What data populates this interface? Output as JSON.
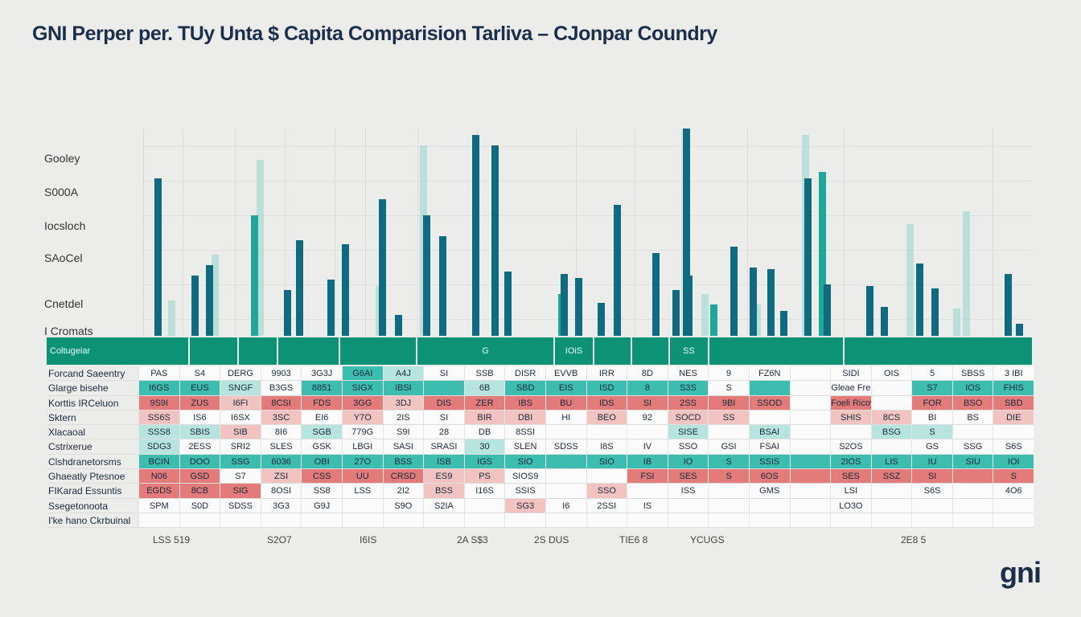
{
  "title": "GNI Perper  per. TUy Unta $ Capita Comparision Tarliva – CJonpar Coundry",
  "logo": "gni",
  "colors": {
    "dark": "#0f6b80",
    "teal": "#1fa89a",
    "light": "#a6dbd2",
    "header": "#0e9276",
    "red": "#e27b79"
  },
  "y_labels": [
    "Gooley",
    "S000A",
    "Iocsloch",
    "SAoCel",
    "Cnetdel",
    "I Cromats"
  ],
  "chart_data": {
    "type": "bar",
    "title": "GNI Perper  per. TUy Unta $ Capita Comparision Tarliva – CJonpar Coundry",
    "grid": true,
    "ylim": [
      0,
      100
    ],
    "series": [
      {
        "color": "dark",
        "values": [
          [
            195,
            76
          ],
          [
            241,
            29
          ],
          [
            259,
            34
          ],
          [
            371,
            46
          ],
          [
            356,
            22
          ],
          [
            410,
            27
          ],
          [
            428,
            44
          ],
          [
            474,
            66
          ],
          [
            494,
            10
          ],
          [
            529,
            58
          ],
          [
            549,
            48
          ],
          [
            590,
            97
          ],
          [
            614,
            92
          ],
          [
            630,
            31
          ],
          [
            700,
            30
          ],
          [
            718,
            28
          ],
          [
            746,
            16
          ],
          [
            766,
            63
          ],
          [
            814,
            40
          ],
          [
            839,
            22
          ],
          [
            852,
            100
          ],
          [
            855,
            29
          ],
          [
            911,
            43
          ],
          [
            935,
            33
          ],
          [
            957,
            32
          ],
          [
            973,
            12
          ],
          [
            1003,
            76
          ],
          [
            1027,
            25
          ],
          [
            1080,
            24
          ],
          [
            1098,
            14
          ],
          [
            1142,
            35
          ],
          [
            1161,
            23
          ],
          [
            1252,
            30
          ],
          [
            1266,
            6
          ]
        ]
      },
      {
        "color": "teal",
        "values": [
          [
            315,
            58
          ],
          [
            1021,
            79
          ],
          [
            886,
            15
          ],
          [
            697,
            20
          ],
          [
            630,
            12
          ]
        ]
      },
      {
        "color": "light",
        "values": [
          [
            322,
            85
          ],
          [
            212,
            17
          ],
          [
            266,
            39
          ],
          [
            525,
            92
          ],
          [
            1188,
            13
          ],
          [
            1130,
            54
          ],
          [
            1200,
            60
          ],
          [
            1000,
            97
          ],
          [
            470,
            24
          ],
          [
            875,
            20
          ],
          [
            940,
            15
          ]
        ]
      }
    ]
  },
  "table": {
    "header": [
      "Coltugeiar",
      "",
      "",
      "",
      "",
      "G",
      "IOiS",
      "",
      "",
      "SS",
      "",
      ""
    ],
    "rows": [
      {
        "label": "Forcand Saeentry",
        "cells": [
          [
            "PAS",
            "w"
          ],
          [
            "S4",
            "w"
          ],
          [
            "DERG",
            "w"
          ],
          [
            "9903",
            "w"
          ],
          [
            "3G3J",
            "w"
          ],
          [
            "G6AI",
            "t"
          ],
          [
            "A4J",
            "lt"
          ],
          [
            "SI",
            "w"
          ],
          [
            "SSB",
            "w"
          ],
          [
            "DISR",
            "w"
          ],
          [
            "EVVB",
            "w"
          ],
          [
            "IRR",
            "w"
          ],
          [
            "8D",
            "w"
          ],
          [
            "NES",
            "w"
          ],
          [
            "9",
            "w"
          ],
          [
            "FZ6N",
            "w"
          ],
          [
            "",
            "w"
          ],
          [
            "SIDI",
            "w"
          ],
          [
            "OIS",
            "w"
          ],
          [
            "5",
            "w"
          ],
          [
            "SBSS",
            "w"
          ],
          [
            "3 IBI",
            "w"
          ]
        ]
      },
      {
        "label": "Glarge bisehe",
        "cells": [
          [
            "I6GS",
            "t"
          ],
          [
            "EUS",
            "t"
          ],
          [
            "SNGF",
            "lt"
          ],
          [
            "B3GS",
            "w"
          ],
          [
            "8851",
            "t"
          ],
          [
            "SIGX",
            "t"
          ],
          [
            "IBSI",
            "t"
          ],
          [
            "",
            "t"
          ],
          [
            "6B",
            "lt"
          ],
          [
            "SBD",
            "t"
          ],
          [
            "EIS",
            "t"
          ],
          [
            "ISD",
            "t"
          ],
          [
            "8",
            "t"
          ],
          [
            "S3S",
            "t"
          ],
          [
            "S",
            "w"
          ],
          [
            "",
            "t"
          ],
          [
            "",
            "w"
          ],
          [
            "Gleae Fre",
            "w"
          ],
          [
            "",
            "w"
          ],
          [
            "S7",
            "t"
          ],
          [
            "IOS",
            "t"
          ],
          [
            "FHIS",
            "t"
          ]
        ]
      },
      {
        "label": "Korttis IRCeluon",
        "cells": [
          [
            "9S9I",
            "r"
          ],
          [
            "ZUS",
            "r"
          ],
          [
            "I6FI",
            "lr"
          ],
          [
            "8CSI",
            "r"
          ],
          [
            "FDS",
            "r"
          ],
          [
            "3GG",
            "r"
          ],
          [
            "3DJ",
            "lr"
          ],
          [
            "DIS",
            "r"
          ],
          [
            "ZER",
            "r"
          ],
          [
            "IBS",
            "r"
          ],
          [
            "BU",
            "r"
          ],
          [
            "IDS",
            "r"
          ],
          [
            "SI",
            "r"
          ],
          [
            "2SS",
            "r"
          ],
          [
            "9BI",
            "r"
          ],
          [
            "SSOD",
            "r"
          ],
          [
            "",
            "w"
          ],
          [
            "Foeli Ricoy",
            "r"
          ],
          [
            "",
            "w"
          ],
          [
            "FOR",
            "r"
          ],
          [
            "BSO",
            "r"
          ],
          [
            "SBD",
            "r"
          ]
        ]
      },
      {
        "label": "Sktern",
        "cells": [
          [
            "SS6S",
            "lr"
          ],
          [
            "IS6",
            "w"
          ],
          [
            "I6SX",
            "w"
          ],
          [
            "3SC",
            "lr"
          ],
          [
            "EI6",
            "w"
          ],
          [
            "Y7O",
            "lr"
          ],
          [
            "2IS",
            "w"
          ],
          [
            "SI",
            "w"
          ],
          [
            "BIR",
            "lr"
          ],
          [
            "DBI",
            "lr"
          ],
          [
            "HI",
            "w"
          ],
          [
            "BEO",
            "lr"
          ],
          [
            "92",
            "w"
          ],
          [
            "SOCD",
            "lr"
          ],
          [
            "SS",
            "lr"
          ],
          [
            "",
            "w"
          ],
          [
            "",
            "w"
          ],
          [
            "SHIS",
            "lr"
          ],
          [
            "8CS",
            "lr"
          ],
          [
            "BI",
            "w"
          ],
          [
            "BS",
            "w"
          ],
          [
            "DIE",
            "lr"
          ]
        ]
      },
      {
        "label": "Xlacaoal",
        "cells": [
          [
            "SSS8",
            "lt"
          ],
          [
            "SBIS",
            "lt"
          ],
          [
            "SIB",
            "lr"
          ],
          [
            "8I6",
            "w"
          ],
          [
            "SGB",
            "lt"
          ],
          [
            "779G",
            "w"
          ],
          [
            "S9I",
            "w"
          ],
          [
            "28",
            "w"
          ],
          [
            "DB",
            "w"
          ],
          [
            "8SSI",
            "w"
          ],
          [
            "",
            "w"
          ],
          [
            "",
            "w"
          ],
          [
            "",
            "w"
          ],
          [
            "SISE",
            "lt"
          ],
          [
            "",
            "w"
          ],
          [
            "BSAI",
            "lt"
          ],
          [
            "",
            "w"
          ],
          [
            "",
            "w"
          ],
          [
            "BSG",
            "lt"
          ],
          [
            "S",
            "lt"
          ],
          [
            "",
            "w"
          ],
          [
            "",
            "w"
          ]
        ]
      },
      {
        "label": "Cstrixerue",
        "cells": [
          [
            "SDG3",
            "lt"
          ],
          [
            "2ESS",
            "w"
          ],
          [
            "SRI2",
            "w"
          ],
          [
            "SLES",
            "w"
          ],
          [
            "GSK",
            "w"
          ],
          [
            "LBGI",
            "w"
          ],
          [
            "SASI",
            "w"
          ],
          [
            "SRASI",
            "w"
          ],
          [
            "30",
            "lt"
          ],
          [
            "SLEN",
            "w"
          ],
          [
            "SDSS",
            "w"
          ],
          [
            "I8S",
            "w"
          ],
          [
            "IV",
            "w"
          ],
          [
            "SSO",
            "w"
          ],
          [
            "GSI",
            "w"
          ],
          [
            "FSAI",
            "w"
          ],
          [
            "",
            "w"
          ],
          [
            "S2OS",
            "w"
          ],
          [
            "",
            "w"
          ],
          [
            "GS",
            "w"
          ],
          [
            "SSG",
            "w"
          ],
          [
            "S6S",
            "w"
          ]
        ]
      },
      {
        "label": "Clshdranetorsms",
        "cells": [
          [
            "BCIN",
            "t"
          ],
          [
            "DOO",
            "t"
          ],
          [
            "SSG",
            "t"
          ],
          [
            "6036",
            "t"
          ],
          [
            "OBI",
            "t"
          ],
          [
            "27O",
            "t"
          ],
          [
            "BSS",
            "t"
          ],
          [
            "ISB",
            "t"
          ],
          [
            "IGS",
            "t"
          ],
          [
            "SIO",
            "t"
          ],
          [
            "",
            "t"
          ],
          [
            "SIO",
            "t"
          ],
          [
            "IB",
            "t"
          ],
          [
            "IO",
            "t"
          ],
          [
            "S",
            "t"
          ],
          [
            "SSIS",
            "t"
          ],
          [
            "",
            "t"
          ],
          [
            "2IOS",
            "t"
          ],
          [
            "LIS",
            "t"
          ],
          [
            "IU",
            "t"
          ],
          [
            "SIU",
            "t"
          ],
          [
            "IOI",
            "t"
          ]
        ]
      },
      {
        "label": "Ghaeatly Ptesnoe",
        "cells": [
          [
            "N06",
            "r"
          ],
          [
            "GSD",
            "r"
          ],
          [
            "S7",
            "w"
          ],
          [
            "ZSI",
            "lr"
          ],
          [
            "CSS",
            "r"
          ],
          [
            "UU",
            "r"
          ],
          [
            "CRSD",
            "r"
          ],
          [
            "ES9",
            "lr"
          ],
          [
            "PS",
            "lr"
          ],
          [
            "SIOS9",
            "w"
          ],
          [
            "",
            "w"
          ],
          [
            "",
            "w"
          ],
          [
            "FSI",
            "r"
          ],
          [
            "SES",
            "r"
          ],
          [
            "S",
            "r"
          ],
          [
            "6OS",
            "r"
          ],
          [
            "",
            "r"
          ],
          [
            "SES",
            "r"
          ],
          [
            "SSZ",
            "r"
          ],
          [
            "SI",
            "r"
          ],
          [
            "",
            "r"
          ],
          [
            "S",
            "r"
          ]
        ]
      },
      {
        "label": "FIKarad Essuntis",
        "cells": [
          [
            "EGDS",
            "r"
          ],
          [
            "8CB",
            "r"
          ],
          [
            "SIG",
            "r"
          ],
          [
            "8OSI",
            "w"
          ],
          [
            "SS8",
            "w"
          ],
          [
            "LSS",
            "w"
          ],
          [
            "2I2",
            "w"
          ],
          [
            "BSS",
            "lr"
          ],
          [
            "I16S",
            "w"
          ],
          [
            "SSIS",
            "w"
          ],
          [
            "",
            "w"
          ],
          [
            "SSO",
            "lr"
          ],
          [
            "",
            "w"
          ],
          [
            "ISS",
            "w"
          ],
          [
            "",
            "w"
          ],
          [
            "GMS",
            "w"
          ],
          [
            "",
            "w"
          ],
          [
            "LSI",
            "w"
          ],
          [
            "",
            "w"
          ],
          [
            "S6S",
            "w"
          ],
          [
            "",
            "w"
          ],
          [
            "4O6",
            "w"
          ]
        ]
      },
      {
        "label": "Ssegetonoota",
        "cells": [
          [
            "SPM",
            "w"
          ],
          [
            "S0D",
            "w"
          ],
          [
            "SDSS",
            "w"
          ],
          [
            "3G3",
            "w"
          ],
          [
            "G9J",
            "w"
          ],
          [
            "",
            "w"
          ],
          [
            "S9O",
            "w"
          ],
          [
            "S2IA",
            "w"
          ],
          [
            "",
            "w"
          ],
          [
            "SG3",
            "lr"
          ],
          [
            "I6",
            "w"
          ],
          [
            "2SSI",
            "w"
          ],
          [
            "IS",
            "w"
          ],
          [
            "",
            "w"
          ],
          [
            "",
            "w"
          ],
          [
            "",
            "w"
          ],
          [
            "",
            "w"
          ],
          [
            "LO3O",
            "w"
          ],
          [
            "",
            "w"
          ],
          [
            "",
            "w"
          ],
          [
            "",
            "w"
          ],
          [
            "",
            "w"
          ]
        ]
      },
      {
        "label": "I'ke hano Ckrbuinal",
        "cells": []
      }
    ]
  },
  "footer_labels": [
    "LSS 519",
    "S2O7",
    "I6IS",
    "2A S$3",
    "2S DUS",
    "TIE6 8",
    "YCUGS",
    "2E8 5"
  ]
}
